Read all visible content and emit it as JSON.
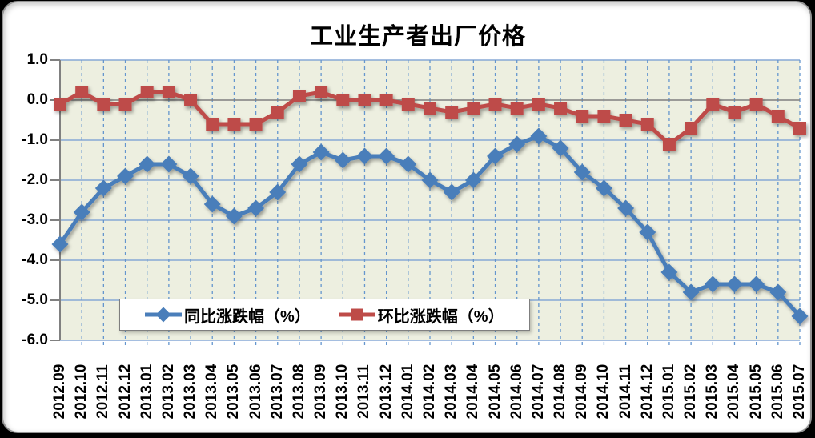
{
  "chart_data": {
    "type": "line",
    "title": "工业生产者出厂价格",
    "categories": [
      "2012.09",
      "2012.10",
      "2012.11",
      "2012.12",
      "2013.01",
      "2013.02",
      "2013.03",
      "2013.04",
      "2013.05",
      "2013.06",
      "2013.07",
      "2013.08",
      "2013.09",
      "2013.10",
      "2013.11",
      "2013.12",
      "2014.01",
      "2014.02",
      "2014.03",
      "2014.04",
      "2014.05",
      "2014.06",
      "2014.07",
      "2014.08",
      "2014.09",
      "2014.10",
      "2014.11",
      "2014.12",
      "2015.01",
      "2015.02",
      "2015.03",
      "2015.04",
      "2015.05",
      "2015.06",
      "2015.07"
    ],
    "series": [
      {
        "name": "同比涨跌幅（%）",
        "marker": "diamond",
        "color": "#4A7EBA",
        "values": [
          -3.6,
          -2.8,
          -2.2,
          -1.9,
          -1.6,
          -1.6,
          -1.9,
          -2.6,
          -2.9,
          -2.7,
          -2.3,
          -1.6,
          -1.3,
          -1.5,
          -1.4,
          -1.4,
          -1.6,
          -2.0,
          -2.3,
          -2.0,
          -1.4,
          -1.1,
          -0.9,
          -1.2,
          -1.8,
          -2.2,
          -2.7,
          -3.3,
          -4.3,
          -4.8,
          -4.6,
          -4.6,
          -4.6,
          -4.8,
          -5.4
        ]
      },
      {
        "name": "环比涨跌幅（%）",
        "marker": "square",
        "color": "#BE4B48",
        "values": [
          -0.1,
          0.2,
          -0.1,
          -0.1,
          0.2,
          0.2,
          0.0,
          -0.6,
          -0.6,
          -0.6,
          -0.3,
          0.1,
          0.2,
          0.0,
          0.0,
          0.0,
          -0.1,
          -0.2,
          -0.3,
          -0.2,
          -0.1,
          -0.2,
          -0.1,
          -0.2,
          -0.4,
          -0.4,
          -0.5,
          -0.6,
          -1.1,
          -0.7,
          -0.1,
          -0.3,
          -0.1,
          -0.4,
          -0.7
        ]
      }
    ],
    "ylim": [
      -6.0,
      1.0
    ],
    "ytick_labels": [
      "1.0",
      "0.0",
      "-1.0",
      "-2.0",
      "-3.0",
      "-4.0",
      "-5.0",
      "-6.0"
    ],
    "grid": {
      "horizontal": "solid",
      "vertical": "dashed"
    },
    "legend_position": "inside-bottom-left",
    "colors": {
      "plot_bg": "#EDEFE0",
      "h_grid": "#87A9D6",
      "v_grid": "#6596CE",
      "zero_line": "#7F7F7F",
      "axis": "#808080",
      "panel_bg": "#FFFFFF",
      "panel_border": "#939393",
      "outer_bg": "#000000",
      "text": "#000000"
    }
  }
}
